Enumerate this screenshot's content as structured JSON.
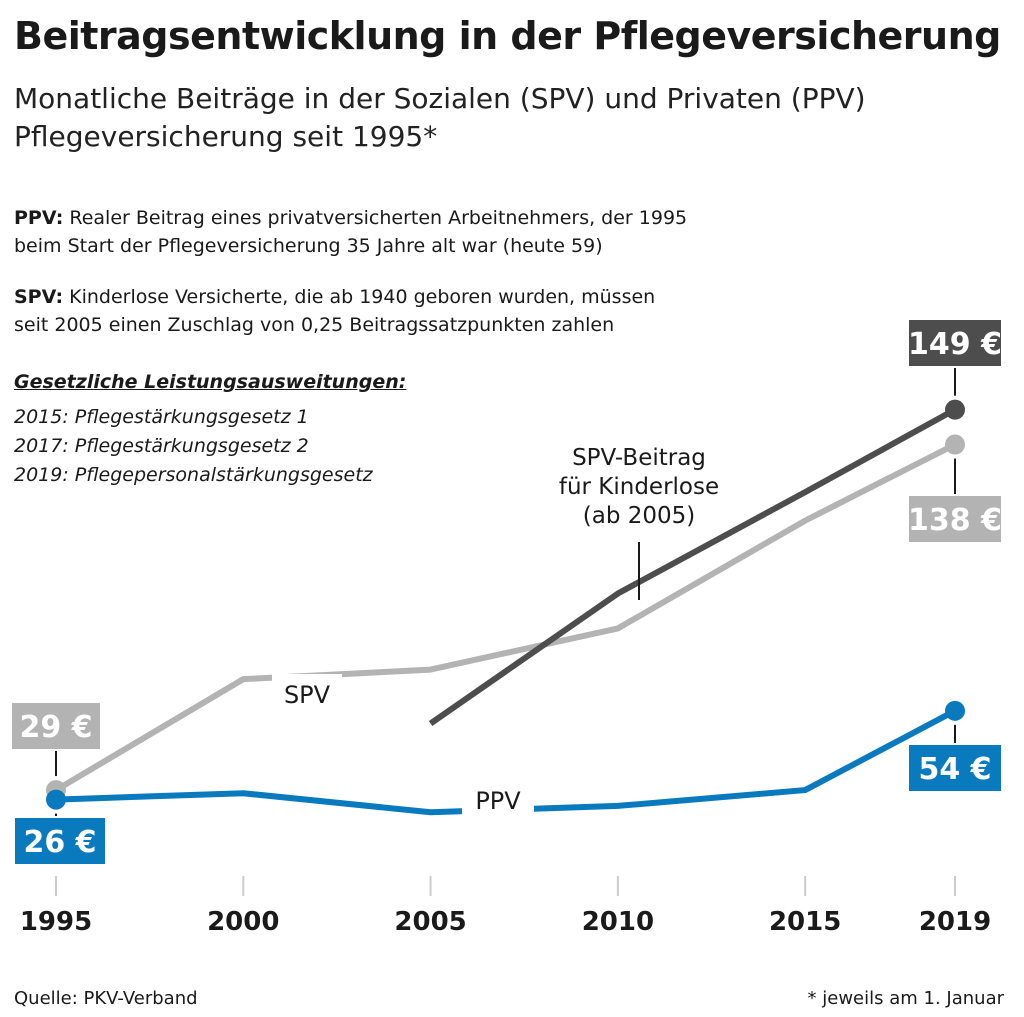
{
  "title": "Beitragsentwicklung in der Pflegeversicherung",
  "subtitle_line1": "Monatliche Beiträge in der Sozialen (SPV) und Privaten (PPV)",
  "subtitle_line2": "Pflegeversicherung seit 1995*",
  "notes": {
    "ppv_label": "PPV:",
    "ppv_text_line1": "Realer Beitrag eines privatversicherten Arbeitnehmers, der 1995",
    "ppv_text_line2": "beim Start der Pflegeversicherung 35 Jahre alt war (heute 59)",
    "spv_label": "SPV:",
    "spv_text_line1": "Kinderlose Versicherte, die ab 1940 geboren wurden, müssen",
    "spv_text_line2": "seit 2005 einen Zuschlag von 0,25 Beitragssatzpunkten zahlen"
  },
  "laws": {
    "title": "Gesetzliche Leistungsausweitungen:",
    "items": [
      "2015: Pflegestärkungsgesetz 1",
      "2017: Pflegestärkungsgesetz 2",
      "2019: Pflegepersonalstärkungsgesetz"
    ]
  },
  "footer": {
    "source": "Quelle: PKV-Verband",
    "footnote": "* jeweils am 1. Januar"
  },
  "colors": {
    "spv": "#b3b3b3",
    "spv_kinderlose": "#4d4d4d",
    "ppv": "#0a7abf",
    "axis_tick": "#cccccc"
  },
  "chart_data": {
    "type": "line",
    "x": [
      1995,
      2000,
      2005,
      2010,
      2015,
      2019
    ],
    "ylim": [
      0,
      160
    ],
    "series": [
      {
        "name": "SPV",
        "key": "spv",
        "values": [
          29,
          64,
          67,
          80,
          114,
          138
        ]
      },
      {
        "name": "SPV-Beitrag für Kinderlose (ab 2005)",
        "key": "spv_kinderlose",
        "values": [
          null,
          null,
          50,
          91,
          123,
          149
        ]
      },
      {
        "name": "PPV",
        "key": "ppv",
        "values": [
          26,
          28,
          22,
          24,
          29,
          54
        ]
      }
    ],
    "line_labels": {
      "spv": "SPV",
      "ppv": "PPV",
      "spv_kinderlose_line1": "SPV-Beitrag",
      "spv_kinderlose_line2": "für Kinderlose",
      "spv_kinderlose_line3": "(ab 2005)"
    },
    "value_labels": {
      "spv_start": "29 €",
      "spv_end": "138 €",
      "spv_kinderlose_end": "149 €",
      "ppv_start": "26 €",
      "ppv_end": "54 €"
    },
    "tick_labels": [
      "1995",
      "2000",
      "2005",
      "2010",
      "2015",
      "2019"
    ]
  }
}
